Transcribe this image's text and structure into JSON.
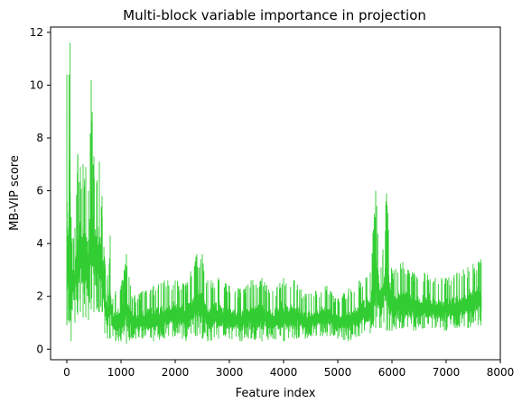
{
  "chart_data": {
    "type": "line",
    "title": "Multi-block variable importance in projection",
    "xlabel": "Feature index",
    "ylabel": "MB-VIP score",
    "xlim": [
      -300,
      8000
    ],
    "ylim": [
      -0.4,
      12.2
    ],
    "x_ticks": [
      0,
      1000,
      2000,
      3000,
      4000,
      5000,
      6000,
      7000,
      8000
    ],
    "y_ticks": [
      0,
      2,
      4,
      6,
      8,
      10,
      12
    ],
    "grid": false,
    "legend": "none",
    "series": [
      {
        "color": "#32cd32",
        "n_points": 7650,
        "envelope": {
          "x": [
            0,
            20,
            40,
            60,
            80,
            100,
            150,
            200,
            250,
            300,
            350,
            400,
            450,
            500,
            550,
            600,
            650,
            700,
            750,
            800,
            850,
            900,
            1000,
            1100,
            1200,
            1400,
            1600,
            1800,
            2000,
            2200,
            2400,
            2500,
            2600,
            2800,
            3000,
            3200,
            3400,
            3600,
            3800,
            4000,
            4200,
            4400,
            4600,
            4800,
            5000,
            5200,
            5400,
            5600,
            5700,
            5800,
            5900,
            6000,
            6200,
            6400,
            6600,
            6800,
            7000,
            7200,
            7400,
            7640
          ],
          "upper": [
            10.4,
            4.3,
            10.4,
            11.6,
            5.0,
            4.2,
            4.6,
            7.4,
            6.9,
            7.0,
            6.9,
            6.0,
            10.2,
            7.3,
            6.3,
            7.1,
            5.8,
            3.4,
            2.8,
            4.3,
            1.9,
            2.2,
            2.4,
            3.6,
            2.0,
            2.2,
            2.4,
            2.6,
            2.6,
            2.5,
            3.6,
            3.6,
            2.6,
            2.7,
            2.4,
            2.3,
            2.6,
            2.7,
            2.2,
            2.7,
            2.6,
            2.1,
            2.2,
            2.4,
            1.9,
            2.3,
            2.6,
            2.9,
            6.0,
            3.1,
            5.9,
            3.0,
            3.3,
            2.9,
            2.9,
            2.7,
            2.7,
            2.9,
            3.1,
            3.4
          ],
          "lower": [
            0.9,
            1.1,
            1.0,
            1.1,
            0.3,
            1.5,
            1.0,
            1.3,
            1.4,
            1.2,
            1.2,
            1.1,
            1.5,
            1.4,
            1.5,
            1.4,
            1.4,
            0.6,
            0.4,
            0.4,
            0.5,
            0.3,
            0.3,
            0.2,
            0.4,
            0.4,
            0.3,
            0.4,
            0.5,
            0.3,
            0.5,
            0.4,
            0.3,
            0.4,
            0.4,
            0.3,
            0.4,
            0.3,
            0.4,
            0.3,
            0.4,
            0.4,
            0.5,
            0.5,
            0.4,
            0.3,
            0.5,
            0.6,
            0.8,
            0.8,
            0.7,
            0.7,
            0.8,
            0.7,
            0.8,
            0.8,
            0.7,
            0.8,
            0.8,
            0.9
          ]
        }
      }
    ]
  }
}
